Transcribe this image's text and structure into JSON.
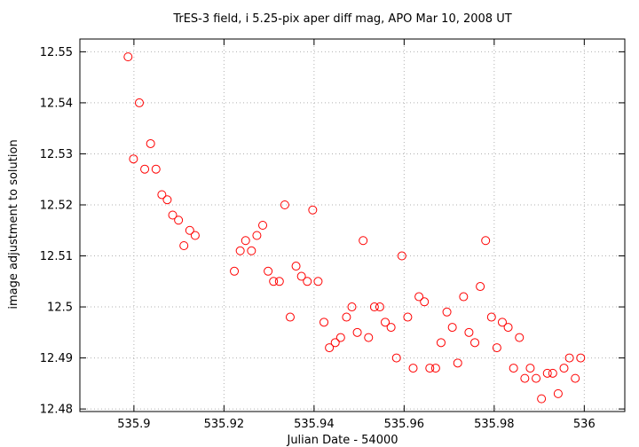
{
  "chart_data": {
    "type": "scatter",
    "title": "TrES-3 field, i 5.25-pix aper diff mag, APO Mar 10, 2008 UT",
    "xlabel": "Julian Date - 54000",
    "ylabel": "image adjustment to solution",
    "xlim": [
      535.888,
      536.009
    ],
    "ylim": [
      12.4795,
      12.5525
    ],
    "xticks": [
      535.9,
      535.92,
      535.94,
      535.96,
      535.98,
      536
    ],
    "xtick_labels": [
      "535.9",
      "535.92",
      "535.94",
      "535.96",
      "535.98",
      "536"
    ],
    "yticks": [
      12.48,
      12.49,
      12.5,
      12.51,
      12.52,
      12.53,
      12.54,
      12.55
    ],
    "ytick_labels": [
      "12.48",
      "12.49",
      "12.5",
      "12.51",
      "12.52",
      "12.53",
      "12.54",
      "12.55"
    ],
    "grid": true,
    "marker": "open-circle",
    "color": "#ff0000",
    "points": [
      [
        535.8987,
        12.549
      ],
      [
        535.8999,
        12.529
      ],
      [
        535.9012,
        12.54
      ],
      [
        535.9024,
        12.527
      ],
      [
        535.9037,
        12.532
      ],
      [
        535.9049,
        12.527
      ],
      [
        535.9062,
        12.522
      ],
      [
        535.9074,
        12.521
      ],
      [
        535.9086,
        12.518
      ],
      [
        535.9099,
        12.517
      ],
      [
        535.9111,
        12.512
      ],
      [
        535.9124,
        12.515
      ],
      [
        535.9136,
        12.514
      ],
      [
        535.9223,
        12.507
      ],
      [
        535.9236,
        12.511
      ],
      [
        535.9248,
        12.513
      ],
      [
        535.9261,
        12.511
      ],
      [
        535.9273,
        12.514
      ],
      [
        535.9286,
        12.516
      ],
      [
        535.9298,
        12.507
      ],
      [
        535.931,
        12.505
      ],
      [
        535.9323,
        12.505
      ],
      [
        535.9335,
        12.52
      ],
      [
        535.9347,
        12.498
      ],
      [
        535.936,
        12.508
      ],
      [
        535.9372,
        12.506
      ],
      [
        535.9385,
        12.505
      ],
      [
        535.9397,
        12.519
      ],
      [
        535.9409,
        12.505
      ],
      [
        535.9422,
        12.497
      ],
      [
        535.9434,
        12.492
      ],
      [
        535.9447,
        12.493
      ],
      [
        535.9459,
        12.494
      ],
      [
        535.9472,
        12.498
      ],
      [
        535.9484,
        12.5
      ],
      [
        535.9496,
        12.495
      ],
      [
        535.9509,
        12.513
      ],
      [
        535.9521,
        12.494
      ],
      [
        535.9534,
        12.5
      ],
      [
        535.9546,
        12.5
      ],
      [
        535.9558,
        12.497
      ],
      [
        535.9571,
        12.496
      ],
      [
        535.9583,
        12.49
      ],
      [
        535.9595,
        12.51
      ],
      [
        535.9608,
        12.498
      ],
      [
        535.962,
        12.488
      ],
      [
        535.9633,
        12.502
      ],
      [
        535.9645,
        12.501
      ],
      [
        535.9657,
        12.488
      ],
      [
        535.967,
        12.488
      ],
      [
        535.9682,
        12.493
      ],
      [
        535.9695,
        12.499
      ],
      [
        535.9707,
        12.496
      ],
      [
        535.9719,
        12.489
      ],
      [
        535.9732,
        12.502
      ],
      [
        535.9744,
        12.495
      ],
      [
        535.9757,
        12.493
      ],
      [
        535.9769,
        12.504
      ],
      [
        535.9781,
        12.513
      ],
      [
        535.9794,
        12.498
      ],
      [
        535.9806,
        12.492
      ],
      [
        535.9818,
        12.497
      ],
      [
        535.9831,
        12.496
      ],
      [
        535.9843,
        12.488
      ],
      [
        535.9856,
        12.494
      ],
      [
        535.9868,
        12.486
      ],
      [
        535.988,
        12.488
      ],
      [
        535.9893,
        12.486
      ],
      [
        535.9905,
        12.482
      ],
      [
        535.9918,
        12.487
      ],
      [
        535.993,
        12.487
      ],
      [
        535.9942,
        12.483
      ],
      [
        535.9955,
        12.488
      ],
      [
        535.9967,
        12.49
      ],
      [
        535.998,
        12.486
      ],
      [
        535.9992,
        12.49
      ]
    ]
  }
}
